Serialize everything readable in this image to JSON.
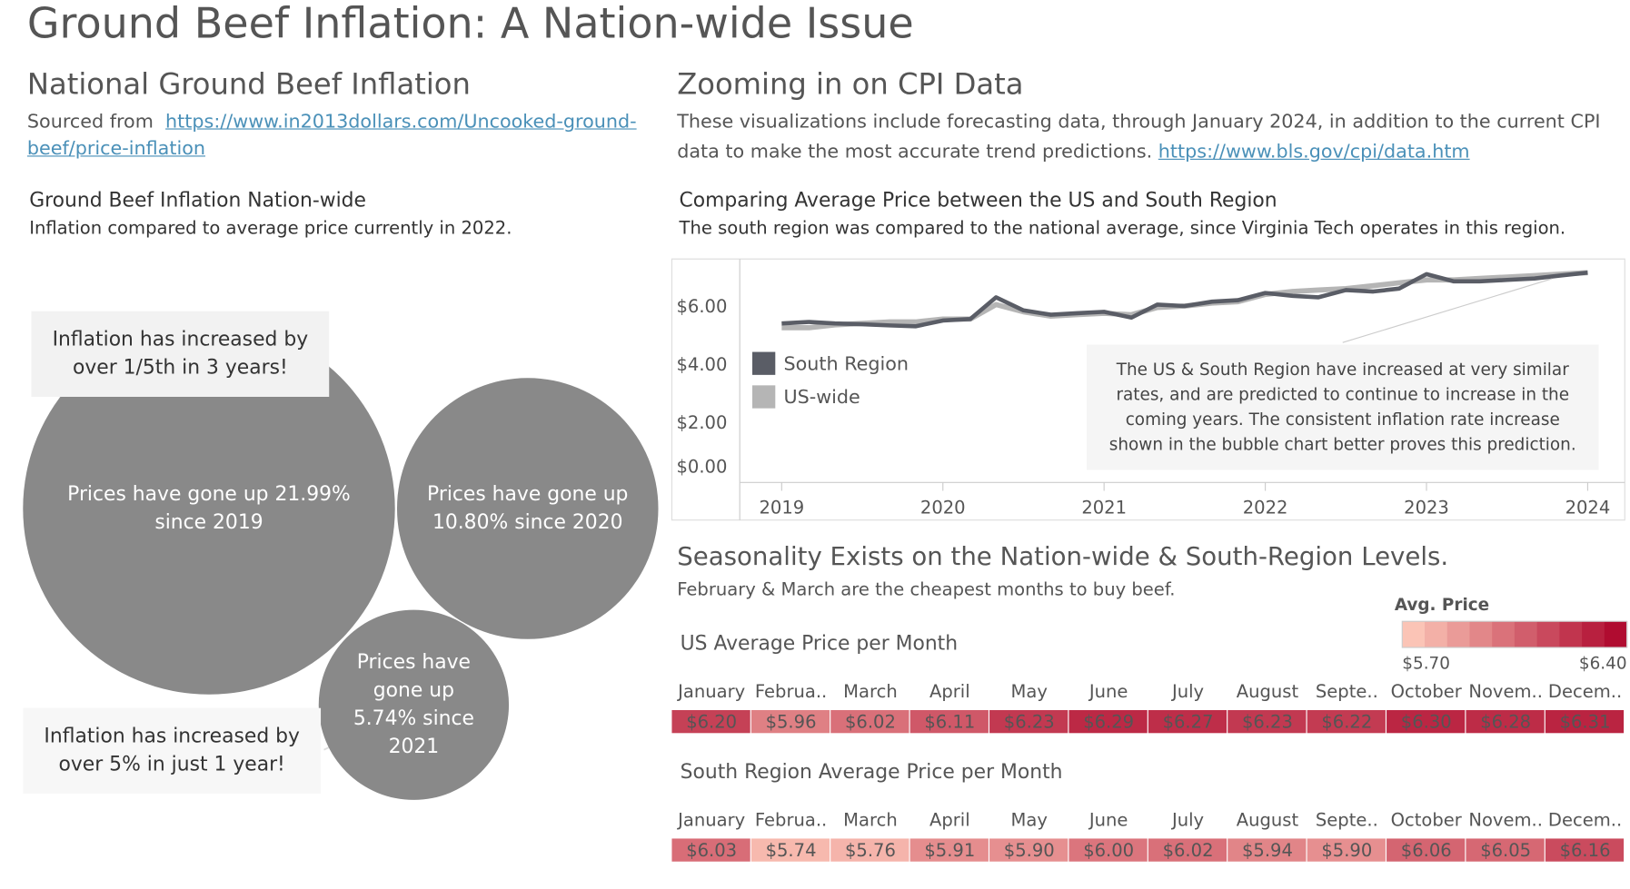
{
  "title": "Ground Beef Inflation: A Nation-wide Issue",
  "left": {
    "heading": "National Ground Beef Inflation",
    "source_prefix": "Sourced from",
    "source_link": "https://www.in2013dollars.com/Uncooked-ground-beef/price-inflation"
  },
  "right": {
    "heading": "Zooming in on CPI Data",
    "text": "These visualizations include forecasting data, through January 2024, in addition to the current CPI data to make the most accurate trend predictions.",
    "link": "https://www.bls.gov/cpi/data.htm"
  },
  "seasonality": {
    "heading": "Seasonality Exists on the Nation-wide & South-Region Levels.",
    "subtitle": "February & March are the cheapest months to buy beef."
  },
  "chart_data": [
    {
      "type": "bubble",
      "title": "Ground Beef Inflation Nation-wide",
      "subtitle": "Inflation compared to average price currently in 2022.",
      "labels": [
        "Prices have gone up 21.99% since 2019",
        "Prices have gone up 10.80% since 2020",
        "Prices have gone up 5.74% since 2021"
      ],
      "values": [
        21.99,
        10.8,
        5.74
      ],
      "color": "#898989",
      "annotations": [
        "Inflation has increased by over 1/5th in 3 years!",
        "Inflation has increased by over 5% in just 1 year!"
      ]
    },
    {
      "type": "line",
      "title": "Comparing Average Price between the US and South Region",
      "subtitle": "The south region was compared to the national average, since Virginia Tech operates in this region.",
      "x": [
        2019,
        2019.17,
        2019.33,
        2019.5,
        2019.67,
        2019.83,
        2020,
        2020.17,
        2020.33,
        2020.5,
        2020.67,
        2020.83,
        2021,
        2021.17,
        2021.33,
        2021.5,
        2021.67,
        2021.83,
        2022,
        2022.17,
        2022.33,
        2022.5,
        2022.67,
        2022.83,
        2023,
        2023.17,
        2023.33,
        2023.5,
        2023.67,
        2023.83,
        2024
      ],
      "series": [
        {
          "name": "South Region",
          "color": "#5a5d66",
          "values": [
            5.45,
            5.5,
            5.45,
            5.42,
            5.38,
            5.35,
            5.55,
            5.6,
            6.35,
            5.9,
            5.75,
            5.8,
            5.85,
            5.65,
            6.1,
            6.05,
            6.2,
            6.25,
            6.5,
            6.4,
            6.35,
            6.6,
            6.55,
            6.65,
            7.15,
            6.9,
            6.9,
            6.95,
            7.0,
            7.1,
            7.2
          ]
        },
        {
          "name": "US-wide",
          "color": "#b5b5b5",
          "values": [
            5.3,
            5.3,
            5.4,
            5.45,
            5.5,
            5.5,
            5.6,
            5.6,
            6.1,
            5.85,
            5.7,
            5.75,
            5.8,
            5.75,
            6.0,
            6.05,
            6.15,
            6.2,
            6.45,
            6.55,
            6.6,
            6.65,
            6.75,
            6.85,
            6.95,
            6.95,
            7.0,
            7.05,
            7.1,
            7.15,
            7.2
          ]
        }
      ],
      "xlim": [
        2018.74,
        2024.23
      ],
      "xticks": [
        2019,
        2020,
        2021,
        2022,
        2023,
        2024
      ],
      "ylim": [
        0,
        7.6
      ],
      "yticks": [
        {
          "value": 0,
          "label": "$0.00"
        },
        {
          "value": 2,
          "label": "$2.00"
        },
        {
          "value": 4,
          "label": "$4.00"
        },
        {
          "value": 6,
          "label": "$6.00"
        }
      ],
      "annotation": "The US & South Region have increased at very similar rates, and are predicted to continue to increase in the coming years.  The consistent inflation rate increase shown in the bubble chart better proves this prediction."
    },
    {
      "type": "heatmap",
      "title": "US Average Price per Month",
      "categories": [
        "January",
        "Februa..",
        "March",
        "April",
        "May",
        "June",
        "July",
        "August",
        "Septe..",
        "October",
        "Novem..",
        "Decem.."
      ],
      "values": [
        6.2,
        5.96,
        6.02,
        6.11,
        6.23,
        6.29,
        6.27,
        6.23,
        6.22,
        6.3,
        6.28,
        6.31
      ],
      "value_labels": [
        "$6.20",
        "$5.96",
        "$6.02",
        "$6.11",
        "$6.23",
        "$6.29",
        "$6.27",
        "$6.23",
        "$6.22",
        "$6.30",
        "$6.28",
        "$6.31"
      ],
      "legend_title": "Avg. Price",
      "color_range": [
        {
          "value": 5.7,
          "label": "$5.70"
        },
        {
          "value": 6.4,
          "label": "$6.40"
        }
      ],
      "color_low": "#fbc4b6",
      "color_high": "#b00c30"
    },
    {
      "type": "heatmap",
      "title": "South Region Average Price per Month",
      "categories": [
        "January",
        "Februa..",
        "March",
        "April",
        "May",
        "June",
        "July",
        "August",
        "Septe..",
        "October",
        "Novem..",
        "Decem.."
      ],
      "values": [
        6.03,
        5.74,
        5.76,
        5.91,
        5.9,
        6.0,
        6.02,
        5.94,
        5.9,
        6.06,
        6.05,
        6.16
      ],
      "value_labels": [
        "$6.03",
        "$5.74",
        "$5.76",
        "$5.91",
        "$5.90",
        "$6.00",
        "$6.02",
        "$5.94",
        "$5.90",
        "$6.06",
        "$6.05",
        "$6.16"
      ]
    }
  ]
}
